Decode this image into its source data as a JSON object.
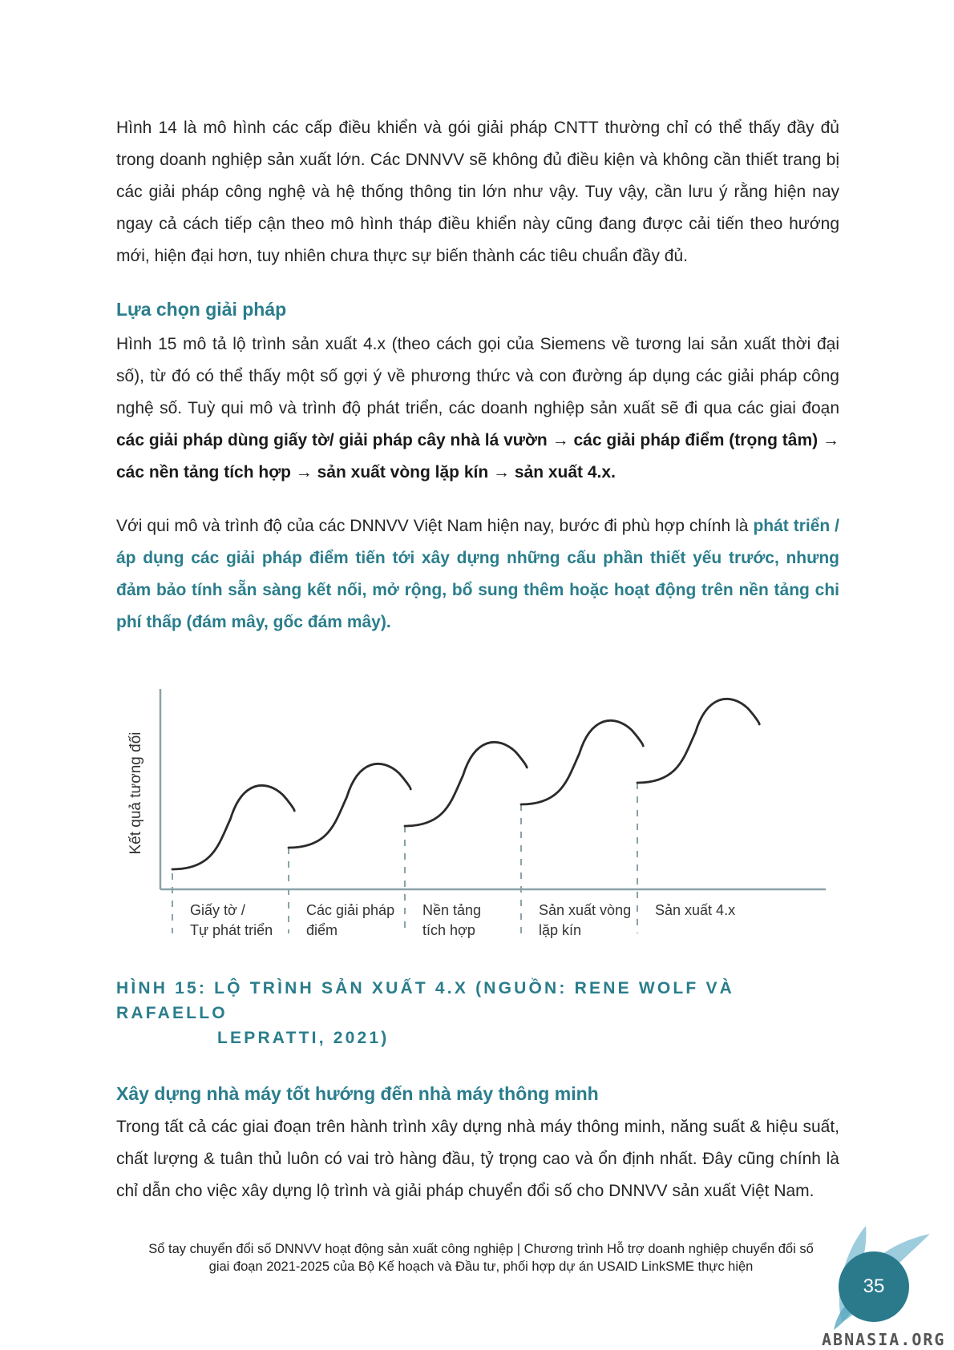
{
  "para1": "Hình 14 là mô hình các cấp điều khiển và gói giải pháp CNTT thường chỉ có thể thấy đầy đủ trong doanh nghiệp sản xuất lớn. Các DNNVV sẽ không đủ điều kiện và không cần thiết trang bị các giải pháp công nghệ và hệ thống thông tin lớn như vậy. Tuy vậy, cần lưu ý rằng hiện nay ngay cả cách tiếp cận theo mô hình tháp điều khiển này cũng đang được cải tiến theo hướng mới, hiện đại hơn, tuy nhiên chưa thực sự biến thành các tiêu chuẩn đầy đủ.",
  "heading1": "Lựa chọn giải pháp",
  "para2": {
    "text": "Hình 15 mô tả lộ trình sản xuất 4.x (theo cách gọi của Siemens về tương lai sản xuất thời đại số), từ đó có thể thấy một số gợi ý về phương thức và con đường áp dụng các giải pháp công nghệ số. Tuỳ qui mô và trình độ phát triển, các doanh nghiệp sản xuất sẽ đi qua các giai đoạn ",
    "bold": "các giải pháp dùng giấy tờ/ giải pháp cây nhà lá vườn → các giải pháp điểm (trọng tâm) → các nền tảng tích hợp → sản xuất vòng lặp kín → sản xuất 4.x."
  },
  "para3": {
    "text": "Với qui mô và trình độ của các DNNVV Việt Nam hiện nay, bước đi phù hợp chính là ",
    "highlight": "phát triển / áp dụng các giải pháp điểm tiến tới xây dựng những cấu phần thiết yếu trước, nhưng đảm bảo tính sẵn sàng kết nối, mở rộng, bổ sung thêm hoặc hoạt động trên nền tảng chi phí thấp (đám mây, gốc đám mây)."
  },
  "chart_data": {
    "type": "line",
    "ylabel": "Kết quả tương đối",
    "stages": [
      {
        "label_lines": [
          "Giấy tờ /",
          "Tự phát triển"
        ]
      },
      {
        "label_lines": [
          "Các giải pháp",
          "điểm"
        ]
      },
      {
        "label_lines": [
          "Nền tảng",
          "tích hợp"
        ]
      },
      {
        "label_lines": [
          "Sản xuất vòng",
          "lặp kín"
        ]
      },
      {
        "label_lines": [
          "Sản xuất 4.x"
        ]
      }
    ],
    "series": [
      {
        "values": [
          1,
          2,
          3,
          4,
          5
        ]
      }
    ],
    "grid": false
  },
  "caption": {
    "line1": "HÌNH 15: LỘ TRÌNH SẢN XUẤT 4.X (NGUỒN: RENE WOLF VÀ RAFAELLO",
    "line2": "LEPRATTI, 2021)"
  },
  "heading2": "Xây dựng nhà máy tốt hướng đến nhà máy thông minh",
  "para4": "Trong tất cả các giai đoạn trên hành trình xây dựng nhà máy thông minh, năng suất & hiệu suất, chất lượng & tuân thủ luôn có vai trò hàng đầu, tỷ trọng cao và ổn định nhất. Đây cũng chính là chỉ dẫn cho việc xây dựng lộ trình và giải pháp chuyển đổi số cho DNNVV sản xuất Việt Nam.",
  "footer": {
    "line1": "Sổ tay chuyển đổi số DNNVV hoạt động sản xuất công nghiệp | Chương trình Hỗ trợ doanh nghiệp chuyển đổi số",
    "line2": "giai đoạn 2021-2025 của Bộ Kế hoạch và Đầu tư, phối hợp dự án USAID LinkSME thực hiện"
  },
  "page_number": "35",
  "watermark": "ABNASIA.ORG",
  "colors": {
    "accent": "#2a7d8c",
    "text": "#262626",
    "badge": "#2a7a8c"
  }
}
